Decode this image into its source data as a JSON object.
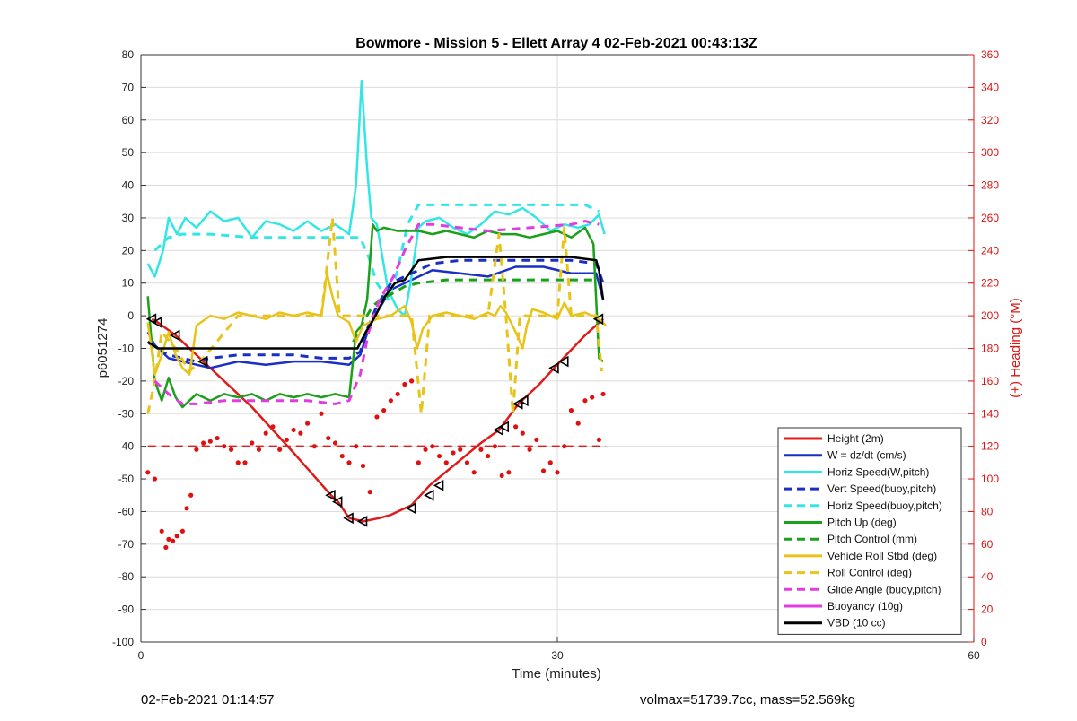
{
  "footer": {
    "timestamp": "02-Feb-2021 01:14:57",
    "summary": "volmax=51739.7cc, mass=52.569kg"
  },
  "chart_data": {
    "type": "line",
    "title": "Bowmore - Mission 5 - Ellett Array 4 02-Feb-2021 00:43:13Z",
    "xlabel": "Time (minutes)",
    "ylabel": "p6051274",
    "ylabel_right": "(+) Heading (°M)",
    "xlim": [
      0,
      60
    ],
    "ylim": [
      -100,
      80
    ],
    "ylim_right": [
      0,
      360
    ],
    "xticks": [
      0,
      30,
      60
    ],
    "yticks": [
      -100,
      -90,
      -80,
      -70,
      -60,
      -50,
      -40,
      -30,
      -20,
      -10,
      0,
      10,
      20,
      30,
      40,
      50,
      60,
      70,
      80
    ],
    "yticks_right": [
      0,
      20,
      40,
      60,
      80,
      100,
      120,
      140,
      160,
      180,
      200,
      220,
      240,
      260,
      280,
      300,
      320,
      340,
      360
    ],
    "grid": true,
    "legend_position": "bottom-right",
    "colors": {
      "axis_right": "#e01010",
      "grid": "#dcdcdc"
    },
    "series": [
      {
        "name": "Height (2m)",
        "color": "#e01b1b",
        "dash": false,
        "x": [
          0.8,
          1.2,
          2.5,
          4.5,
          8.0,
          11.0,
          13.7,
          14.2,
          15.0,
          16.0,
          17.2,
          18.0,
          19.5,
          20.8,
          22.5,
          24.5,
          25.8,
          27.2,
          28.7,
          30.2,
          32.0,
          33.3
        ],
        "y": [
          -1,
          -2,
          -6,
          -14,
          -28,
          -42,
          -55,
          -57,
          -62,
          -63,
          -62,
          -61,
          -58,
          -52,
          -46,
          -39,
          -35,
          -27,
          -21,
          -14,
          -6,
          -1
        ]
      },
      {
        "name": "W = dz/dt (cm/s)",
        "color": "#1a2fc4",
        "dash": false,
        "x": [
          0.5,
          1.0,
          2.0,
          3.0,
          4.0,
          5.0,
          7.0,
          9.0,
          11.0,
          13.0,
          15.0,
          15.8,
          16.4,
          17.0,
          18.0,
          19.5,
          21.0,
          23.0,
          25.0,
          27.0,
          29.0,
          31.0,
          32.8,
          33.3
        ],
        "y": [
          -5,
          -9,
          -13,
          -14,
          -15,
          -16,
          -14,
          -15,
          -14,
          -14,
          -15,
          -12,
          -4,
          1,
          8,
          11,
          14,
          13,
          12,
          15,
          15,
          13,
          13,
          5
        ]
      },
      {
        "name": "Horiz Speed(W,pitch)",
        "color": "#32e6e6",
        "dash": false,
        "x": [
          0.5,
          1.0,
          1.6,
          2.0,
          2.6,
          3.2,
          4.0,
          5.0,
          6.0,
          7.0,
          8.0,
          9.0,
          10.0,
          11.0,
          12.0,
          13.0,
          14.0,
          15.0,
          15.5,
          15.9,
          16.3,
          16.6,
          17.0,
          17.8,
          18.5,
          19.0,
          19.5,
          20.0,
          20.5,
          21.5,
          22.5,
          23.5,
          24.5,
          25.5,
          26.5,
          27.5,
          28.5,
          29.5,
          30.5,
          31.5,
          32.3,
          33.0,
          33.4
        ],
        "y": [
          16,
          12,
          20,
          30,
          25,
          30,
          27,
          32,
          29,
          30,
          24,
          29,
          28,
          26,
          29,
          26,
          28,
          25,
          40,
          72,
          45,
          30,
          28,
          8,
          2,
          0,
          12,
          27,
          29,
          30,
          27,
          25,
          28,
          32,
          31,
          33,
          30,
          26,
          28,
          27,
          28,
          31,
          25
        ]
      },
      {
        "name": "Vert Speed(buoy,pitch)",
        "color": "#1a2fc4",
        "dash": true,
        "x": [
          0.5,
          1.0,
          2.0,
          3.0,
          4.0,
          5.0,
          7.0,
          9.0,
          11.0,
          13.0,
          15.0,
          15.8,
          16.4,
          17.0,
          18.0,
          19.5,
          21.0,
          23.0,
          25.0,
          27.0,
          29.0,
          31.0,
          32.8,
          33.3
        ],
        "y": [
          -8,
          -10,
          -12,
          -13,
          -14,
          -13,
          -12,
          -12,
          -12,
          -13,
          -13,
          -11,
          -3,
          3,
          10,
          13,
          16,
          17,
          17,
          17,
          17,
          17,
          16,
          10
        ]
      },
      {
        "name": "Horiz Speed(buoy,pitch)",
        "color": "#32e6e6",
        "dash": true,
        "x": [
          1.0,
          2.0,
          3.0,
          5.0,
          8.0,
          11.0,
          13.5,
          15.0,
          15.8,
          16.4,
          17.0,
          17.8,
          18.5,
          19.2,
          20.0,
          22.0,
          25.0,
          28.0,
          30.0,
          32.0,
          33.0
        ],
        "y": [
          20,
          24,
          25,
          25,
          24,
          24,
          24,
          24,
          24,
          18,
          10,
          5,
          14,
          28,
          34,
          34,
          34,
          34,
          34,
          34,
          32
        ]
      },
      {
        "name": "Pitch Up (deg)",
        "color": "#1aa01a",
        "dash": false,
        "x": [
          0.5,
          1.0,
          1.5,
          2.0,
          2.5,
          3.0,
          3.5,
          4.0,
          5.0,
          6.0,
          7.0,
          8.0,
          9.0,
          10.0,
          11.0,
          12.0,
          13.0,
          14.0,
          15.0,
          15.5,
          15.9,
          16.3,
          16.7,
          17.0,
          17.5,
          18.5,
          20.0,
          21.0,
          22.0,
          23.0,
          24.0,
          25.0,
          26.0,
          27.0,
          28.0,
          29.0,
          30.0,
          31.0,
          32.0,
          32.6,
          33.0,
          33.3
        ],
        "y": [
          6,
          -20,
          -26,
          -19,
          -25,
          -28,
          -26,
          -24,
          -26,
          -24,
          -25,
          -24,
          -26,
          -24,
          -25,
          -24,
          -25,
          -24,
          -25,
          -5,
          -3,
          5,
          28,
          26,
          27,
          26,
          26,
          25,
          26,
          25,
          24,
          26,
          25,
          25,
          24,
          25,
          26,
          24,
          27,
          22,
          -13,
          -14
        ]
      },
      {
        "name": "Pitch Control (mm)",
        "color": "#1aa01a",
        "dash": true,
        "x": [
          15.3,
          16.0,
          16.7,
          17.3,
          18.2,
          19.0,
          20.0,
          22.0,
          25.0,
          28.0,
          31.0,
          33.0
        ],
        "y": [
          -8,
          -2,
          3,
          5,
          7,
          9,
          10,
          11,
          11,
          11,
          11,
          11
        ]
      },
      {
        "name": "Vehicle Roll Stbd (deg)",
        "color": "#e8c41a",
        "dash": false,
        "x": [
          0.5,
          1.0,
          1.5,
          2.0,
          2.5,
          3.0,
          3.5,
          4.0,
          5.0,
          6.0,
          7.0,
          8.0,
          9.0,
          10.0,
          11.0,
          12.0,
          13.0,
          13.4,
          13.8,
          14.2,
          14.6,
          15.0,
          15.5,
          16.0,
          17.0,
          18.0,
          19.0,
          19.5,
          19.9,
          20.3,
          21.0,
          22.0,
          23.0,
          24.0,
          25.0,
          25.5,
          25.9,
          26.3,
          27.0,
          27.5,
          27.8,
          28.2,
          29.0,
          30.0,
          30.5,
          31.0,
          32.0,
          33.0,
          33.5
        ],
        "y": [
          -2,
          -18,
          -12,
          -5,
          -12,
          -16,
          -18,
          -3,
          0,
          -1,
          1,
          0,
          -1,
          1,
          0,
          1,
          0,
          13,
          6,
          0,
          -1,
          -2,
          -8,
          -3,
          -1,
          0,
          3,
          -2,
          -10,
          -4,
          0,
          1,
          0,
          -1,
          1,
          0,
          3,
          1,
          -5,
          -10,
          -3,
          2,
          1,
          -1,
          4,
          0,
          1,
          -1,
          -3
        ]
      },
      {
        "name": "Roll Control (deg)",
        "color": "#e8c41a",
        "dash": true,
        "x": [
          0.5,
          1.0,
          1.5,
          2.5,
          3.5,
          4.5,
          7.0,
          10.0,
          13.0,
          13.8,
          14.3,
          14.8,
          15.5,
          18.0,
          19.5,
          20.2,
          20.8,
          21.3,
          22.0,
          25.0,
          25.8,
          26.3,
          26.8,
          27.3,
          27.8,
          28.3,
          29.0,
          30.0,
          30.5,
          31.0,
          32.0,
          32.8,
          33.2
        ],
        "y": [
          -30,
          -20,
          -5,
          -10,
          -17,
          -13,
          0,
          0,
          0,
          30,
          0,
          0,
          0,
          0,
          0,
          -30,
          0,
          0,
          0,
          0,
          25,
          0,
          -30,
          0,
          0,
          0,
          0,
          0,
          27,
          0,
          0,
          0,
          -17
        ]
      },
      {
        "name": "Glide Angle (buoy,pitch)",
        "color": "#e23be2",
        "dash": true,
        "x": [
          1.0,
          2.0,
          3.0,
          4.0,
          6.0,
          8.0,
          10.0,
          12.0,
          14.0,
          15.0,
          15.8,
          16.4,
          17.2,
          18.2,
          19.0,
          20.0,
          21.0,
          23.0,
          25.0,
          28.0,
          31.0,
          32.0,
          33.0
        ],
        "y": [
          -20,
          -24,
          -27,
          -27,
          -26,
          -26,
          -26,
          -26,
          -27,
          -26,
          -18,
          -5,
          5,
          12,
          20,
          28,
          28,
          27,
          26,
          27,
          28,
          29,
          28
        ]
      },
      {
        "name": "Buoyancy (10g)",
        "color": "#e23be2",
        "dash": false,
        "x": [],
        "y": []
      },
      {
        "name": "VBD (10 cc)",
        "color": "#000000",
        "dash": false,
        "x": [
          0.5,
          1.2,
          2.0,
          5.0,
          10.0,
          13.0,
          15.6,
          16.2,
          16.9,
          17.6,
          18.3,
          19.0,
          20.0,
          22.0,
          25.0,
          28.0,
          31.0,
          32.8,
          33.0,
          33.3
        ],
        "y": [
          -8,
          -10,
          -10,
          -10,
          -10,
          -10,
          -10,
          -5,
          0,
          6,
          10,
          11,
          17,
          18,
          18,
          18,
          18,
          17,
          14,
          5
        ]
      }
    ],
    "horizontal_lines": [
      {
        "axis": "right",
        "y": 120,
        "x_range": [
          0.5,
          33.5
        ],
        "color": "#e01b1b",
        "dash": true
      }
    ],
    "heading_points": {
      "axis": "right",
      "color": "#e01010",
      "x": [
        0.5,
        1.0,
        1.5,
        1.8,
        2.0,
        2.3,
        2.6,
        3.0,
        3.3,
        3.6,
        4.0,
        4.5,
        5.0,
        5.5,
        6.0,
        6.5,
        7.0,
        7.5,
        8.0,
        8.5,
        9.0,
        9.5,
        10.0,
        10.5,
        11.0,
        11.5,
        12.0,
        12.5,
        13.0,
        13.5,
        14.0,
        14.5,
        15.0,
        15.5,
        16.0,
        16.5,
        17.0,
        17.5,
        18.0,
        18.5,
        19.0,
        19.5,
        20.0,
        20.5,
        21.0,
        21.5,
        22.0,
        22.5,
        23.0,
        23.5,
        24.0,
        24.5,
        25.0,
        25.5,
        26.0,
        26.5,
        27.0,
        27.5,
        28.0,
        28.5,
        29.0,
        29.5,
        30.0,
        30.5,
        31.0,
        31.5,
        32.0,
        32.5,
        33.0,
        33.3
      ],
      "y": [
        104,
        100,
        68,
        58,
        63,
        62,
        65,
        68,
        82,
        90,
        118,
        122,
        123,
        125,
        120,
        118,
        110,
        110,
        122,
        118,
        128,
        132,
        118,
        124,
        130,
        128,
        134,
        120,
        140,
        125,
        122,
        114,
        110,
        120,
        108,
        92,
        138,
        142,
        148,
        152,
        158,
        160,
        110,
        118,
        120,
        114,
        110,
        116,
        118,
        110,
        104,
        118,
        114,
        120,
        102,
        104,
        132,
        128,
        118,
        124,
        105,
        110,
        104,
        120,
        142,
        134,
        148,
        150,
        124,
        152
      ]
    },
    "markers": {
      "x": [
        0.8,
        1.2,
        2.5,
        4.5,
        13.7,
        14.2,
        15.0,
        16.0,
        19.5,
        20.8,
        21.5,
        25.8,
        26.2,
        27.2,
        27.6,
        29.8,
        30.5,
        33.0
      ],
      "y": [
        -1,
        -2,
        -6,
        -14,
        -55,
        -57,
        -62,
        -63,
        -59,
        -55,
        -52,
        -35,
        -34,
        -27,
        -26,
        -16,
        -14,
        -1
      ]
    }
  }
}
